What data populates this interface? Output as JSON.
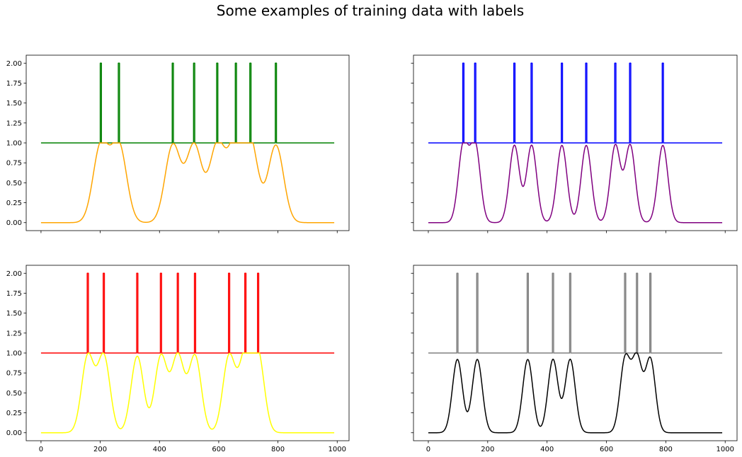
{
  "figure": {
    "title": "Some examples of training data with labels"
  },
  "chart_data": [
    {
      "type": "line",
      "panel": "top-left",
      "xlim": [
        -50,
        1040
      ],
      "ylim": [
        -0.1,
        2.1
      ],
      "xticks": [
        "0",
        "200",
        "400",
        "600",
        "800",
        "1000"
      ],
      "xtick_values": [
        0,
        200,
        400,
        600,
        800,
        1000
      ],
      "yticks": [
        "0.00",
        "0.25",
        "0.50",
        "0.75",
        "1.00",
        "1.25",
        "1.50",
        "1.75",
        "2.00"
      ],
      "ytick_values": [
        0,
        0.25,
        0.5,
        0.75,
        1.0,
        1.25,
        1.5,
        1.75,
        2.0
      ],
      "show_xtick_labels": false,
      "show_ytick_labels": true,
      "x_range": [
        0,
        990
      ],
      "peak_positions": [
        202,
        263,
        445,
        517,
        595,
        658,
        707,
        793
      ],
      "series": [
        {
          "role": "labels",
          "color": "#008000",
          "baseline": 1.0,
          "spike_value": 2.0
        },
        {
          "role": "signal",
          "color": "#ffa500",
          "peak_value": 0.97,
          "sigma": 26
        }
      ]
    },
    {
      "type": "line",
      "panel": "top-right",
      "xlim": [
        -50,
        1040
      ],
      "ylim": [
        -0.1,
        2.1
      ],
      "xticks": [
        "0",
        "200",
        "400",
        "600",
        "800",
        "1000"
      ],
      "xtick_values": [
        0,
        200,
        400,
        600,
        800,
        1000
      ],
      "yticks": [
        "0.00",
        "0.25",
        "0.50",
        "0.75",
        "1.00",
        "1.25",
        "1.50",
        "1.75",
        "2.00"
      ],
      "ytick_values": [
        0,
        0.25,
        0.5,
        0.75,
        1.0,
        1.25,
        1.5,
        1.75,
        2.0
      ],
      "show_xtick_labels": false,
      "show_ytick_labels": false,
      "x_range": [
        0,
        990
      ],
      "peak_positions": [
        118,
        158,
        290,
        348,
        450,
        532,
        630,
        680,
        790
      ],
      "series": [
        {
          "role": "labels",
          "color": "#0000ff",
          "baseline": 1.0,
          "spike_value": 2.0
        },
        {
          "role": "signal",
          "color": "#800080",
          "peak_value": 0.97,
          "sigma": 17
        }
      ]
    },
    {
      "type": "line",
      "panel": "bottom-left",
      "xlim": [
        -50,
        1040
      ],
      "ylim": [
        -0.1,
        2.1
      ],
      "xticks": [
        "0",
        "200",
        "400",
        "600",
        "800",
        "1000"
      ],
      "xtick_values": [
        0,
        200,
        400,
        600,
        800,
        1000
      ],
      "yticks": [
        "0.00",
        "0.25",
        "0.50",
        "0.75",
        "1.00",
        "1.25",
        "1.50",
        "1.75",
        "2.00"
      ],
      "ytick_values": [
        0,
        0.25,
        0.5,
        0.75,
        1.0,
        1.25,
        1.5,
        1.75,
        2.0
      ],
      "show_xtick_labels": true,
      "show_ytick_labels": true,
      "x_range": [
        0,
        990
      ],
      "peak_positions": [
        158,
        212,
        325,
        405,
        462,
        520,
        635,
        690,
        733
      ],
      "series": [
        {
          "role": "labels",
          "color": "#ff0000",
          "baseline": 1.0,
          "spike_value": 2.0
        },
        {
          "role": "signal",
          "color": "#ffff00",
          "peak_value": 0.96,
          "sigma": 21
        }
      ]
    },
    {
      "type": "line",
      "panel": "bottom-right",
      "xlim": [
        -50,
        1040
      ],
      "ylim": [
        -0.1,
        2.1
      ],
      "xticks": [
        "0",
        "200",
        "400",
        "600",
        "800",
        "1000"
      ],
      "xtick_values": [
        0,
        200,
        400,
        600,
        800,
        1000
      ],
      "yticks": [
        "0.00",
        "0.25",
        "0.50",
        "0.75",
        "1.00",
        "1.25",
        "1.50",
        "1.75",
        "2.00"
      ],
      "ytick_values": [
        0,
        0.25,
        0.5,
        0.75,
        1.0,
        1.25,
        1.5,
        1.75,
        2.0
      ],
      "show_xtick_labels": true,
      "show_ytick_labels": false,
      "x_range": [
        0,
        990
      ],
      "peak_positions": [
        98,
        165,
        335,
        420,
        478,
        663,
        703,
        748
      ],
      "series": [
        {
          "role": "labels",
          "color": "#808080",
          "baseline": 1.0,
          "spike_value": 2.0
        },
        {
          "role": "signal",
          "color": "#000000",
          "peak_value": 0.92,
          "sigma": 17
        }
      ]
    }
  ]
}
